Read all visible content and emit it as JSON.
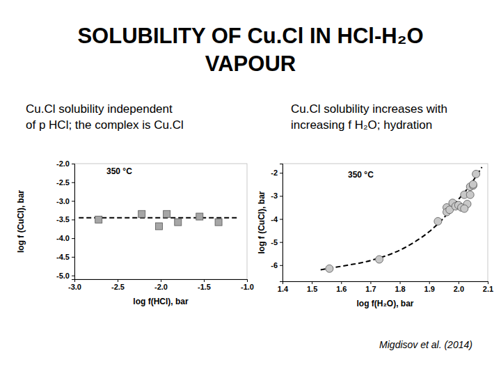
{
  "slide": {
    "title": [
      "SOLUBILITY OF Cu.Cl IN HCl-H₂O",
      "VAPOUR"
    ],
    "citation": "Migdisov et al. (2014)"
  },
  "chart_data": [
    {
      "type": "scatter",
      "title": [
        "Cu.Cl solubility independent",
        "of p HCl; the complex is Cu.Cl"
      ],
      "annotations": [
        "350 °C"
      ],
      "x_label": "log f(HCl), bar",
      "y_label": "log f (CuCl), bar",
      "xlim": [
        -3.0,
        -1.0
      ],
      "xticks": [
        {
          "value": -3.0,
          "label": "-3.0"
        },
        {
          "value": -2.5,
          "label": "-2.5"
        },
        {
          "value": -2.0,
          "label": "-2.0"
        },
        {
          "value": -1.5,
          "label": "-1.5"
        },
        {
          "value": -1.0,
          "label": "-1.0"
        }
      ],
      "ylim": [
        -5.1,
        -2.0
      ],
      "yticks": [
        {
          "value": -2.0,
          "label": "-2.0"
        },
        {
          "value": -2.5,
          "label": "-2.5"
        },
        {
          "value": -3.0,
          "label": "-3.0"
        },
        {
          "value": -3.5,
          "label": "-3.5"
        },
        {
          "value": -4.0,
          "label": "-4.0"
        },
        {
          "value": -4.5,
          "label": "-4.5"
        },
        {
          "value": -5.0,
          "label": "-5.0"
        }
      ],
      "series": [
        {
          "type": "line",
          "line_style": "dashed",
          "color": "#000000",
          "x": [
            -2.95,
            -1.1
          ],
          "values": [
            -3.45,
            -3.45
          ]
        },
        {
          "type": "scatter",
          "marker": "square",
          "color": "#a6a6a6",
          "x": [
            -2.72,
            -2.22,
            -2.02,
            -1.93,
            -1.8,
            -1.55,
            -1.33
          ],
          "values": [
            -3.5,
            -3.35,
            -3.68,
            -3.35,
            -3.57,
            -3.42,
            -3.57
          ]
        }
      ]
    },
    {
      "type": "scatter",
      "title": [
        "Cu.Cl solubility increases with",
        "increasing f H₂O; hydration"
      ],
      "annotations": [
        "350 °C"
      ],
      "x_label": "log f(H₂O), bar",
      "y_label": "log f (CuCl), bar",
      "xlim": [
        1.4,
        2.1
      ],
      "xticks": [
        1.4,
        1.5,
        1.6,
        1.7,
        1.8,
        1.9,
        {
          "value": 2.0,
          "label": "2.0"
        },
        2.1
      ],
      "ylim": [
        -6.7,
        -1.6
      ],
      "yticks": [
        -2,
        -3,
        -4,
        -5,
        -6
      ],
      "series": [
        {
          "type": "line",
          "line_style": "dashed",
          "color": "#000000",
          "x": [
            1.53,
            1.6,
            1.7,
            1.8,
            1.85,
            1.9,
            1.95,
            2.0,
            2.03,
            2.06,
            2.08
          ],
          "values": [
            -6.2,
            -6.05,
            -5.8,
            -5.35,
            -5.0,
            -4.55,
            -3.95,
            -3.15,
            -2.7,
            -2.15,
            -1.75
          ]
        },
        {
          "type": "scatter",
          "marker": "circle",
          "color": "#c8c8c8",
          "x": [
            1.56,
            1.73,
            1.93,
            1.96,
            1.96,
            1.97,
            1.98,
            1.99,
            2.0,
            2.01,
            2.02,
            2.03,
            2.02,
            2.04,
            2.04,
            2.05,
            2.06,
            2.05
          ],
          "values": [
            -6.15,
            -5.75,
            -4.1,
            -3.5,
            -3.7,
            -3.6,
            -3.3,
            -3.45,
            -3.4,
            -3.5,
            -2.95,
            -3.35,
            -3.55,
            -2.6,
            -2.95,
            -2.55,
            -2.05,
            -2.5
          ]
        }
      ]
    }
  ]
}
